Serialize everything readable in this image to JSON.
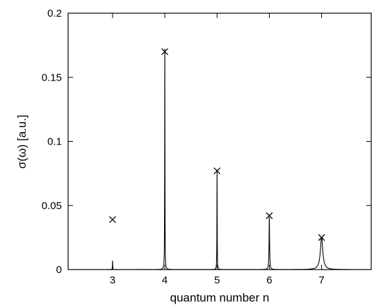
{
  "chart_data": {
    "type": "line",
    "title": "",
    "xlabel": "quantum number n",
    "ylabel": "σ(ω) [a.u.]",
    "xlim": [
      2.15,
      7.95
    ],
    "ylim": [
      0,
      0.2
    ],
    "x_ticks": [
      3,
      4,
      5,
      6,
      7
    ],
    "x_tick_labels": [
      "3",
      "4",
      "5",
      "6",
      "7"
    ],
    "y_ticks": [
      0,
      0.05,
      0.1,
      0.15,
      0.2
    ],
    "y_tick_labels": [
      "0",
      "0.05",
      "0.1",
      "0.15",
      "0.2"
    ],
    "grid": false,
    "series": [
      {
        "type": "line",
        "peaks": [
          {
            "n": 3,
            "height": 0.007,
            "width": 0.003
          },
          {
            "n": 4,
            "height": 0.178,
            "width": 0.003
          },
          {
            "n": 5,
            "height": 0.078,
            "width": 0.003
          },
          {
            "n": 6,
            "height": 0.041,
            "width": 0.006
          },
          {
            "n": 7,
            "height": 0.025,
            "width": 0.028
          }
        ]
      },
      {
        "type": "scatter",
        "marker": "x",
        "points": [
          {
            "x": 3,
            "y": 0.039
          },
          {
            "x": 4,
            "y": 0.17
          },
          {
            "x": 5,
            "y": 0.077
          },
          {
            "x": 6,
            "y": 0.042
          },
          {
            "x": 7,
            "y": 0.025
          }
        ]
      }
    ]
  }
}
